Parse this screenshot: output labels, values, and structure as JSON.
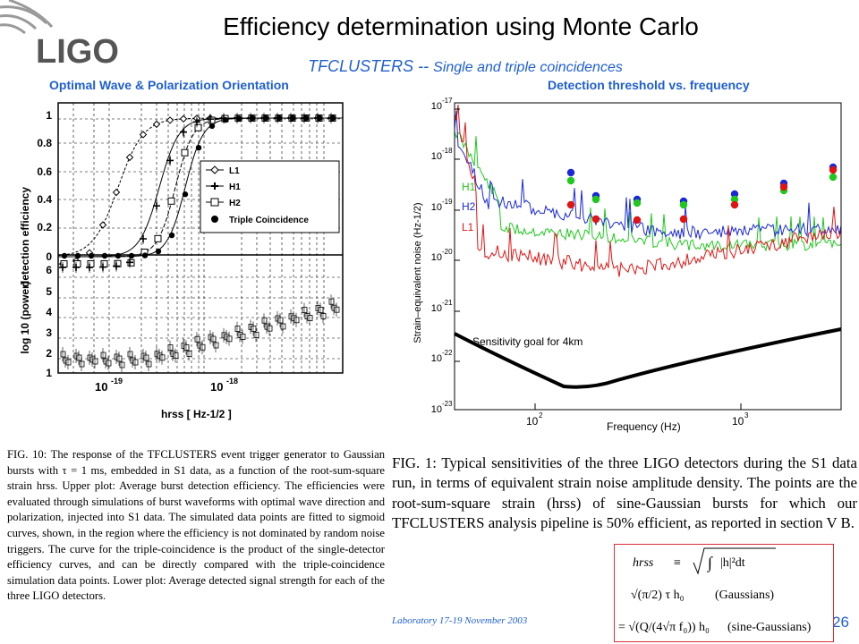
{
  "header": {
    "logo_text": "LIGO",
    "title": "Efficiency determination using Monte Carlo",
    "subtitle_main": "TFCLUSTERS --",
    "subtitle_rest": "Single and triple coincidences",
    "left_label": "Optimal Wave & Polarization  Orientation",
    "right_label": "Detection threshold vs.  frequency"
  },
  "left_plot": {
    "upper_ylabel": "detection efficiency",
    "lower_ylabel": "log 10 (power)",
    "xlabel": "hrss [ Hz-1/2 ]",
    "xticks": [
      "10",
      "10"
    ],
    "xtick_exp": [
      "-19",
      "-18"
    ],
    "upper_yticks": [
      "1",
      "0.8",
      "0.6",
      "0.4",
      "0.2",
      "0"
    ],
    "lower_yticks": [
      "6",
      "5",
      "4",
      "3",
      "2",
      "1"
    ],
    "legend": [
      "L1",
      "H1",
      "H2",
      "Triple Coincidence"
    ]
  },
  "right_plot": {
    "ylabel": "Strain–equivalent noise (Hz-1/2)",
    "xlabel": "Frequency (Hz)",
    "yticks": [
      "10",
      "10",
      "10",
      "10",
      "10",
      "10",
      "10"
    ],
    "ytick_exp": [
      "-17",
      "-18",
      "-19",
      "-20",
      "-21",
      "-22",
      "-23"
    ],
    "xticks": [
      "10",
      "10"
    ],
    "xtick_exp": [
      "2",
      "3"
    ],
    "series_labels": [
      "H1",
      "H2",
      "L1"
    ],
    "series_colors": [
      "#1ec81e",
      "#1a28d8",
      "#e01414"
    ],
    "annotation": "Sensitivity goal for 4km"
  },
  "captions": {
    "left": "FIG. 10: The response of the TFCLUSTERS event trigger generator to Gaussian bursts with τ = 1 ms, embedded in S1 data, as a function of the root-sum-square strain hrss. Upper plot: Average burst detection efficiency. The efficiencies were evaluated through simulations of burst waveforms with optimal wave direction and polarization, injected into S1 data. The simulated data points are fitted to sigmoid curves, shown, in the region where the efficiency is not dominated by random noise triggers. The curve for the triple-coincidence is the product of the single-detector efficiency curves, and can be directly compared with the triple-coincidence simulation data points. Lower plot: Average detected signal strength for each of the three LIGO detectors.",
    "right": "FIG. 1: Typical sensitivities of the three LIGO detectors during the S1 data run, in terms of equivalent strain noise amplitude density. The points are the root-sum-square strain (hrss) of sine-Gaussian bursts for which our TFCLUSTERS analysis pipeline is 50% efficient, as reported in section V B."
  },
  "footer": {
    "text": "Laboratory 17-19 November 2003",
    "page": "26"
  },
  "formula": {
    "lhs": "hrss",
    "eq1": "≡",
    "rhs1": "|h|²dt",
    "rhs2": "(Gaussians)",
    "rhs3": "(sine-Gaussians)"
  }
}
